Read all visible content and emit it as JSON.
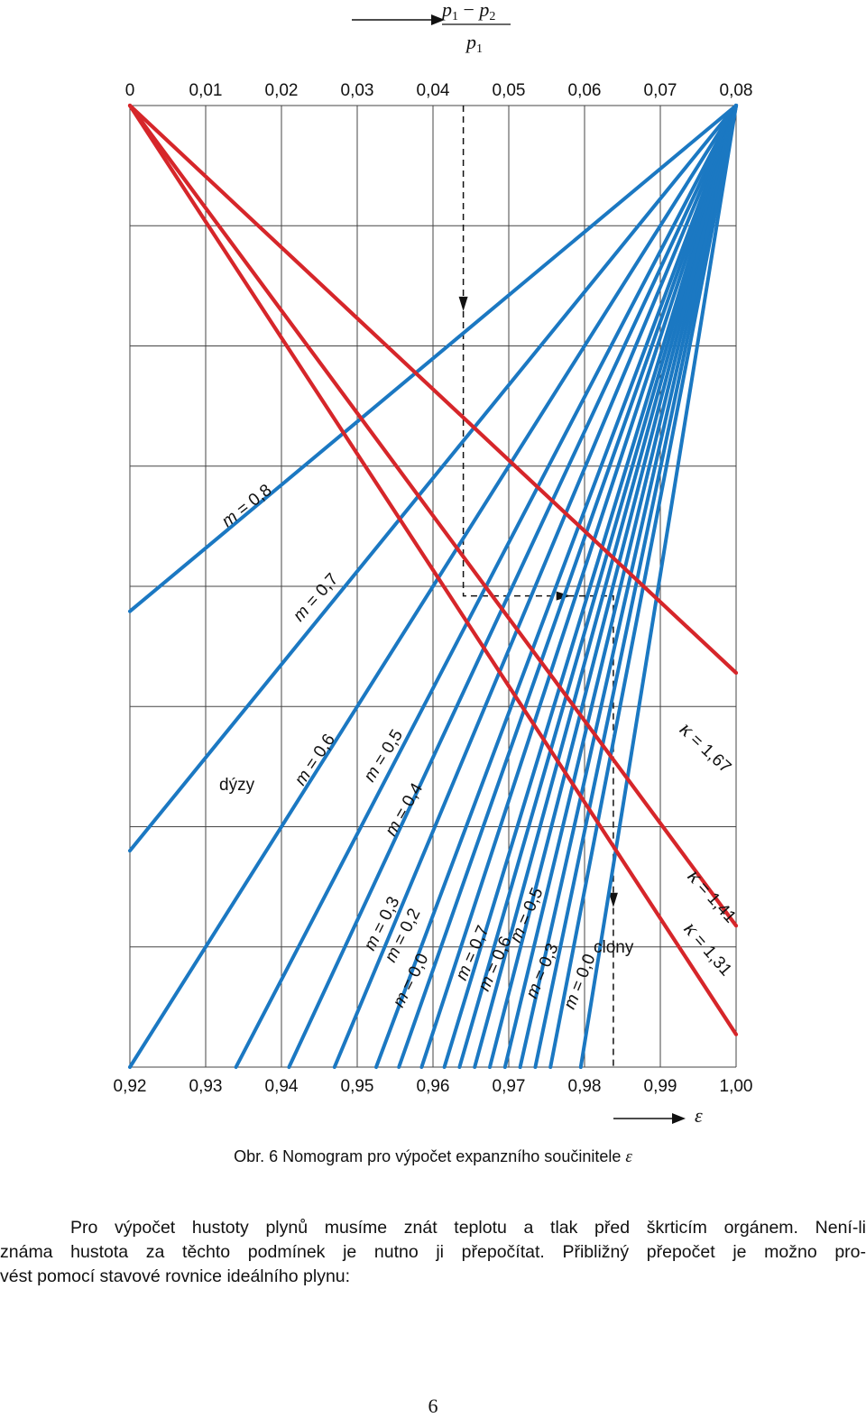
{
  "chart_data": {
    "type": "line",
    "axis_top": {
      "label_num": [
        "p",
        "1",
        " − ",
        "p",
        "2"
      ],
      "label_den": [
        "p",
        "1"
      ],
      "ticks": [
        "0",
        "0,01",
        "0,02",
        "0,03",
        "0,04",
        "0,05",
        "0,06",
        "0,07",
        "0,08"
      ],
      "range": [
        0,
        0.08
      ]
    },
    "axis_bottom": {
      "label": "ε",
      "ticks": [
        "0,92",
        "0,93",
        "0,94",
        "0,95",
        "0,96",
        "0,97",
        "0,98",
        "0,99",
        "1,00"
      ],
      "range": [
        0.92,
        1.0
      ]
    },
    "kappa_lines": [
      {
        "label": "κ = 1,67",
        "kappa": 1.67,
        "from_x": 0,
        "to_eps": 1.0,
        "to_row": 0.59
      },
      {
        "label": "κ = 1,41",
        "kappa": 1.41,
        "from_x": 0,
        "to_eps": 1.0,
        "to_row": 0.853
      },
      {
        "label": "κ = 1,31",
        "kappa": 1.31,
        "from_x": 0,
        "to_eps": 1.0,
        "to_row": 0.966
      }
    ],
    "nozzle_group": {
      "label": "dýzy",
      "lines": [
        {
          "label": "m = 0,8",
          "m": 0.8,
          "to_eps": 0.92,
          "to_row": 0.526
        },
        {
          "label": "m = 0,7",
          "m": 0.7,
          "to_eps": 0.92,
          "to_row": 0.775
        },
        {
          "label": "m = 0,6",
          "m": 0.6,
          "to_eps": 0.92,
          "to_row": 1.0
        },
        {
          "label": "m = 0,5",
          "m": 0.5,
          "to_eps": 0.934,
          "to_row": 1.0
        },
        {
          "label": "m = 0,4",
          "m": 0.4,
          "to_eps": 0.941,
          "to_row": 1.0
        },
        {
          "label": "m = 0,3",
          "m": 0.3,
          "to_eps": 0.947,
          "to_row": 1.0
        },
        {
          "label": "m = 0,2",
          "m": 0.2,
          "to_eps": 0.9525,
          "to_row": 1.0
        },
        {
          "label": "m = 0,0",
          "m": 0.0,
          "to_eps": 0.9555,
          "to_row": 1.0
        }
      ]
    },
    "orifice_group": {
      "label": "clony",
      "lines": [
        {
          "label": "m = 0,7",
          "m": 0.7,
          "to_eps": 0.9585
        },
        {
          "label": "m = 0,6",
          "m": 0.6,
          "to_eps": 0.9615
        },
        {
          "label": "m = 0,5",
          "m": 0.5,
          "to_eps": 0.9655
        },
        {
          "label": "m = 0,3",
          "m": 0.3,
          "to_eps": 0.9695
        },
        {
          "label": "m = 0,0",
          "m": 0.0,
          "to_eps": 0.9735
        }
      ]
    },
    "extra_unlabeled_lines": [
      {
        "to_eps": 0.9635
      },
      {
        "to_eps": 0.9675
      },
      {
        "to_eps": 0.9715
      },
      {
        "to_eps": 0.9755
      },
      {
        "to_eps": 0.9795
      }
    ],
    "example_path": {
      "x": 0.044,
      "turn_row": 0.51,
      "eps": 0.9838
    },
    "grid": true,
    "colors": {
      "kappa": "#d6262a",
      "m": "#1b78c2",
      "grid": "#444444"
    }
  },
  "caption": {
    "prefix": "Obr. 6  Nomogram pro výpočet expanzního součinitele",
    "symbol": "ε"
  },
  "paragraph": {
    "line1": "Pro výpočet hustoty plynů musíme znát teplotu a tlak před škrticím orgánem. Není-li",
    "line2": "známa hustota za těchto podmínek je nutno ji přepočítat. Přibližný přepočet je možno pro-",
    "line3": "vést pomocí stavové rovnice ideálního plynu:"
  },
  "page_number": "6"
}
